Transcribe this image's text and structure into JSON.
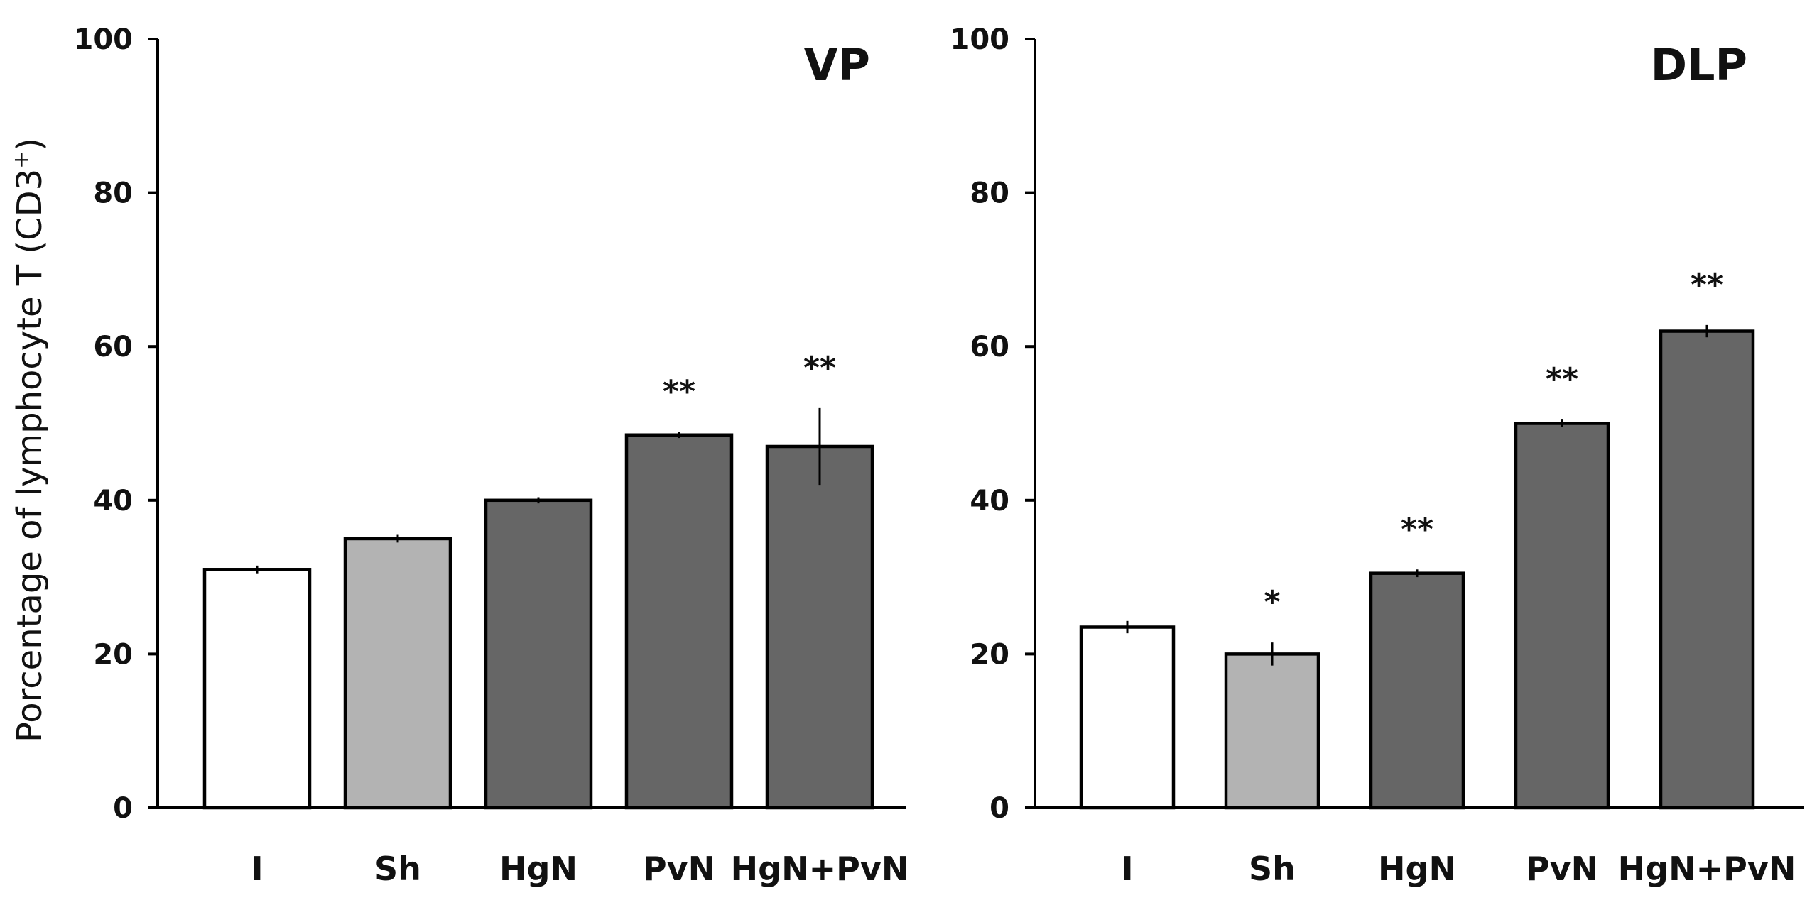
{
  "chart_data": [
    {
      "type": "bar",
      "title": "VP",
      "ylabel": "Porcentage of lymphocyte T (CD3+)",
      "xlabel": "",
      "ylim": [
        0,
        100
      ],
      "yticks": [
        "0",
        "20",
        "40",
        "60",
        "80",
        "100"
      ],
      "categories": [
        "I",
        "Sh",
        "HgN",
        "PvN",
        "HgN+PvN"
      ],
      "values": [
        31,
        35,
        40,
        48.5,
        47
      ],
      "errors": [
        0.5,
        0.5,
        0.4,
        0.4,
        5
      ],
      "significance": [
        "",
        "",
        "",
        "**",
        "**"
      ],
      "colors": [
        "#ffffff",
        "#b3b3b3",
        "#666666",
        "#666666",
        "#666666"
      ]
    },
    {
      "type": "bar",
      "title": "DLP",
      "ylabel": "",
      "xlabel": "",
      "ylim": [
        0,
        100
      ],
      "yticks": [
        "0",
        "20",
        "40",
        "60",
        "80",
        "100"
      ],
      "categories": [
        "I",
        "Sh",
        "HgN",
        "PvN",
        "HgN+PvN"
      ],
      "values": [
        23.5,
        20,
        30.5,
        50,
        62
      ],
      "errors": [
        0.8,
        1.5,
        0.5,
        0.5,
        0.8
      ],
      "significance": [
        "",
        "*",
        "**",
        "**",
        "**"
      ],
      "colors": [
        "#ffffff",
        "#b3b3b3",
        "#666666",
        "#666666",
        "#666666"
      ]
    }
  ]
}
